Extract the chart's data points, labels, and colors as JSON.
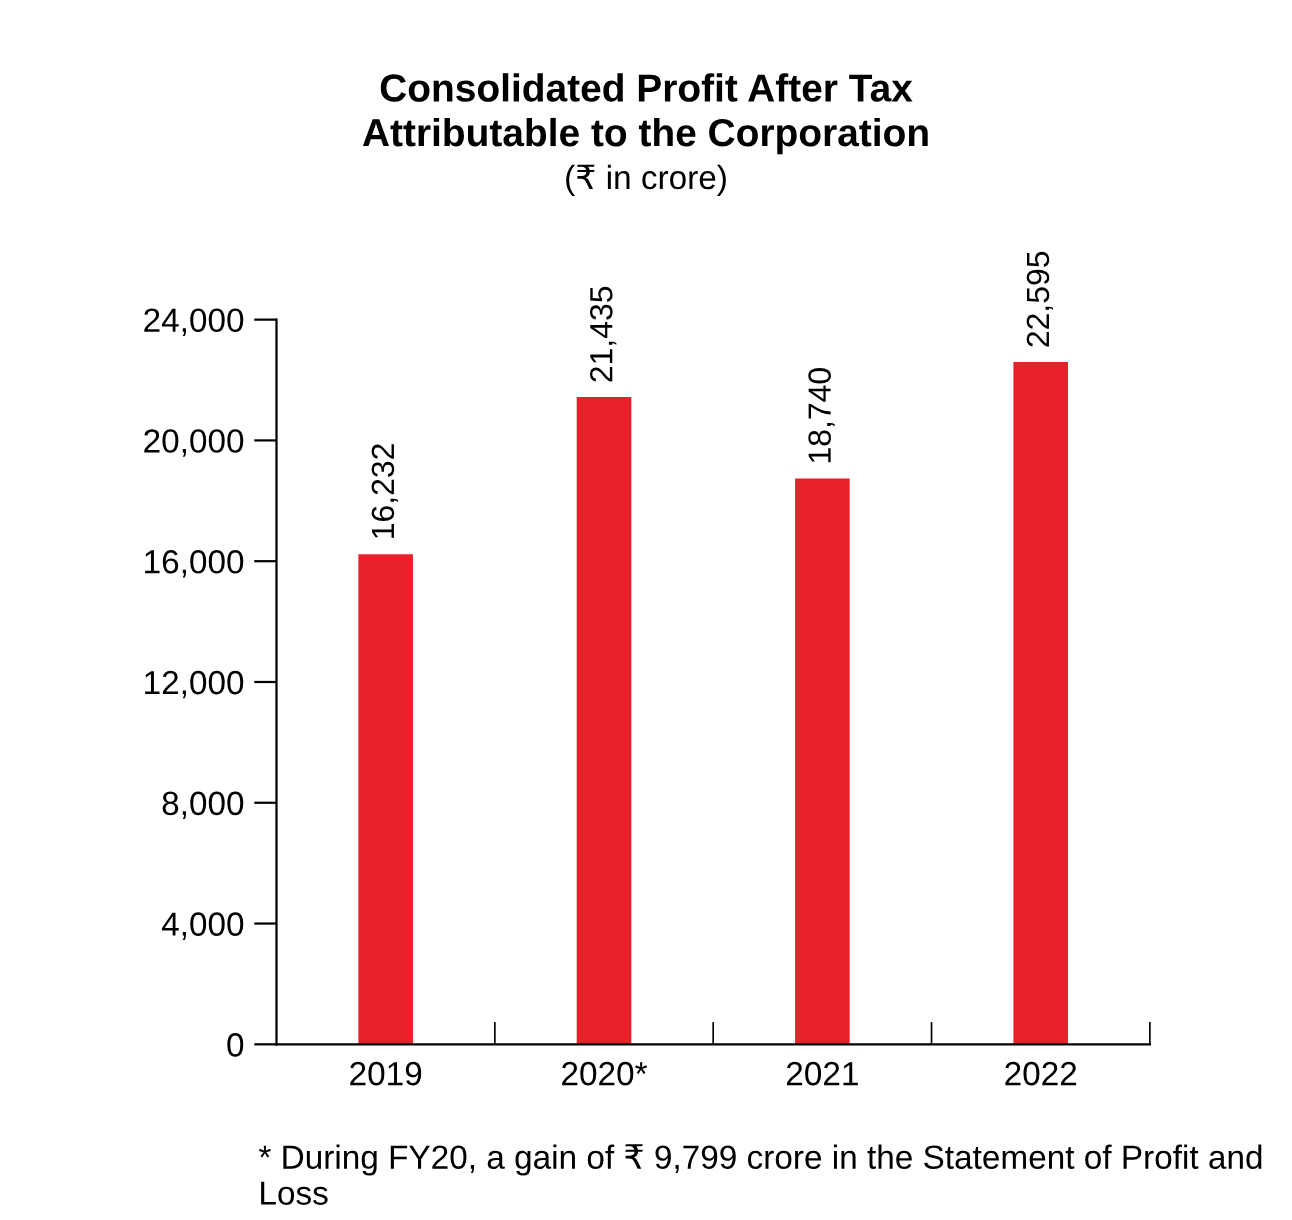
{
  "chart_data": {
    "type": "bar",
    "title": "Consolidated Profit After Tax\nAttributable to the Corporation",
    "subtitle": "(₹ in crore)",
    "categories": [
      "2019",
      "2020*",
      "2021",
      "2022"
    ],
    "values": [
      16232,
      21435,
      18740,
      22595
    ],
    "value_labels": [
      "16,232",
      "21,435",
      "18,740",
      "22,595"
    ],
    "color": "#e8202a",
    "ylim": [
      0,
      24000
    ],
    "yticks": [
      {
        "value": 0,
        "label": "0"
      },
      {
        "value": 4000,
        "label": "4,000"
      },
      {
        "value": 8000,
        "label": "8,000"
      },
      {
        "value": 12000,
        "label": "12,000"
      },
      {
        "value": 16000,
        "label": "16,000"
      },
      {
        "value": 20000,
        "label": "20,000"
      },
      {
        "value": 24000,
        "label": "24,000"
      }
    ],
    "grid": false,
    "legend": false,
    "annotations": [
      "* During FY20, a gain of ₹ 9,799 crore in the Statement of Profit and Loss"
    ]
  }
}
